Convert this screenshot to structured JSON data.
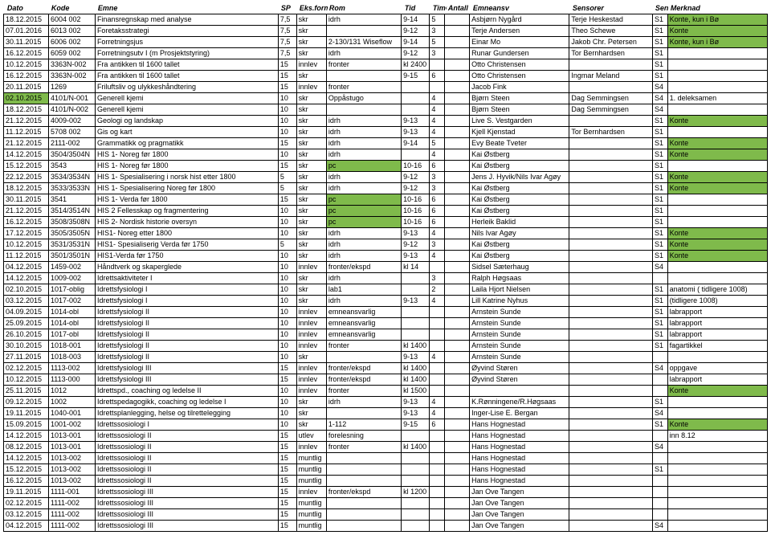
{
  "headers": [
    "Dato",
    "Kode",
    "Emne",
    "SP",
    "Eks.form",
    "Rom",
    "Tid",
    "Timer",
    "Antall",
    "Emneansv",
    "Sensorer",
    "Senstroru.",
    "Merknad"
  ],
  "colors": {
    "green": "#7fba4b"
  },
  "rows": [
    {
      "d": "18.12.2015",
      "k": "6004 002",
      "e": "Finansregnskap med analyse",
      "sp": "7,5",
      "f": "skr",
      "r": "idrh",
      "t": "9-14",
      "ti": "5",
      "a": "",
      "ea": "Asbjørn Nygård",
      "s": "Terje Heskestad",
      "sr": "S1",
      "m": "Konte, kun i Bø",
      "mg": 1
    },
    {
      "d": "07.01.2016",
      "k": "6013 002",
      "e": "Foretaksstrategi",
      "sp": "7,5",
      "f": "skr",
      "r": "",
      "t": "9-12",
      "ti": "3",
      "a": "",
      "ea": "Terje Andersen",
      "s": "Theo Schewe",
      "sr": "S1",
      "m": "Konte",
      "mg": 1
    },
    {
      "d": "30.11.2015",
      "k": "6006 002",
      "e": "Forretningsjus",
      "sp": "7,5",
      "f": "skr",
      "r": "2-130/131 Wiseflow",
      "t": "9-14",
      "ti": "5",
      "a": "",
      "ea": "Einar Mo",
      "s": "Jakob Chr. Petersen",
      "sr": "S1",
      "m": "Konte, kun i Bø",
      "mg": 1
    },
    {
      "d": "16.12.2015",
      "k": "6059 002",
      "e": "Forretningsutv I (m Prosjektstyring)",
      "sp": "7,5",
      "f": "skr",
      "r": "idrh",
      "t": "9-12",
      "ti": "3",
      "a": "",
      "ea": "Runar Gundersen",
      "s": "Tor Bernhardsen",
      "sr": "S1",
      "m": ""
    },
    {
      "d": "10.12.2015",
      "k": "3363N-002",
      "e": "Fra antikken til 1600 tallet",
      "sp": "15",
      "f": "innlev",
      "r": "fronter",
      "t": "kl 2400",
      "ti": "",
      "a": "",
      "ea": "Otto Christensen",
      "s": "",
      "sr": "S1",
      "m": ""
    },
    {
      "d": "16.12.2015",
      "k": "3363N-002",
      "e": "Fra antikken til 1600 tallet",
      "sp": "15",
      "f": "skr",
      "r": "",
      "t": "9-15",
      "ti": "6",
      "a": "",
      "ea": "Otto Christensen",
      "s": "Ingmar Meland",
      "sr": "S1",
      "m": ""
    },
    {
      "d": "20.11.2015",
      "k": "1269",
      "e": "Friluftsliv og ulykkeshåndtering",
      "sp": "15",
      "f": "innlev",
      "r": "fronter",
      "t": "",
      "ti": "",
      "a": "",
      "ea": "Jacob Fink",
      "s": "",
      "sr": "S4",
      "m": ""
    },
    {
      "d": "02.10.2015",
      "dg": 1,
      "k": "4101/N-001",
      "e": "Generell kjemi",
      "sp": "10",
      "f": "skr",
      "r": "Oppåstugo",
      "t": "",
      "ti": "4",
      "a": "",
      "ea": "Bjørn Steen",
      "s": "Dag Semmingsen",
      "sr": "S4",
      "m": "1. deleksamen"
    },
    {
      "d": "18.12.2015",
      "k": "4101/N-002",
      "e": "Generell kjemi",
      "sp": "10",
      "f": "skr",
      "r": "",
      "t": "",
      "ti": "4",
      "a": "",
      "ea": "Bjørn Steen",
      "s": "Dag Semmingsen",
      "sr": "S4",
      "m": ""
    },
    {
      "d": "21.12.2015",
      "k": "4009-002",
      "e": "Geologi og landskap",
      "sp": "10",
      "f": "skr",
      "r": "idrh",
      "t": "9-13",
      "ti": "4",
      "a": "",
      "ea": "Live S. Vestgarden",
      "s": "",
      "sr": "S1",
      "m": "Konte",
      "mg": 1
    },
    {
      "d": "11.12.2015",
      "k": "5708 002",
      "e": "Gis og kart",
      "sp": "10",
      "f": "skr",
      "r": "idrh",
      "t": "9-13",
      "ti": "4",
      "a": "",
      "ea": "Kjell Kjenstad",
      "s": "Tor Bernhardsen",
      "sr": "S1",
      "m": ""
    },
    {
      "d": "21.12.2015",
      "k": "2111-002",
      "e": "Grammatikk og pragmatikk",
      "sp": "15",
      "f": "skr",
      "r": "idrh",
      "t": "9-14",
      "ti": "5",
      "a": "",
      "ea": "Evy Beate Tveter",
      "s": "",
      "sr": "S1",
      "m": "Konte",
      "mg": 1
    },
    {
      "d": "14.12.2015",
      "k": "3504/3504N",
      "e": "HIS 1- Noreg før 1800",
      "sp": "10",
      "f": "skr",
      "r": "idrh",
      "t": "",
      "ti": "4",
      "a": "",
      "ea": "Kai Østberg",
      "s": "",
      "sr": "S1",
      "m": "Konte",
      "mg": 1
    },
    {
      "d": "15.12.2015",
      "k": "3543",
      "e": "HIS 1- Noreg før 1800",
      "sp": "15",
      "f": "skr",
      "r": "pc",
      "rg": 1,
      "t": "10-16",
      "ti": "6",
      "a": "",
      "ea": "Kai Østberg",
      "s": "",
      "sr": "S1",
      "m": ""
    },
    {
      "d": "22.12.2015",
      "k": "3534/3534N",
      "e": "HIS 1- Spesialisering i norsk hist etter 1800",
      "sp": "5",
      "f": "skr",
      "r": "idrh",
      "t": "9-12",
      "ti": "3",
      "a": "",
      "ea": "Jens J. Hyvik/Nils Ivar Agøy",
      "s": "",
      "sr": "S1",
      "m": "Konte",
      "mg": 1
    },
    {
      "d": "18.12.2015",
      "k": "3533/3533N",
      "e": "HIS 1- Spesialisering Noreg før 1800",
      "sp": "5",
      "f": "skr",
      "r": "idrh",
      "t": "9-12",
      "ti": "3",
      "a": "",
      "ea": "Kai Østberg",
      "s": "",
      "sr": "S1",
      "m": "Konte",
      "mg": 1
    },
    {
      "d": "30.11.2015",
      "k": "3541",
      "e": "HIS 1- Verda før 1800",
      "sp": "15",
      "f": "skr",
      "r": "pc",
      "rg": 1,
      "t": "10-16",
      "ti": "6",
      "a": "",
      "ea": "Kai Østberg",
      "s": "",
      "sr": "S1",
      "m": ""
    },
    {
      "d": "21.12.2015",
      "k": "3514/3514N",
      "e": "HIS 2 Fellesskap og fragmentering",
      "sp": "10",
      "f": "skr",
      "r": "pc",
      "rg": 1,
      "t": "10-16",
      "ti": "6",
      "a": "",
      "ea": "Kai Østberg",
      "s": "",
      "sr": "S1",
      "m": ""
    },
    {
      "d": "16.12.2015",
      "k": "3508/3508N",
      "e": "HIS 2- Nordisk historie oversyn",
      "sp": "10",
      "f": "skr",
      "r": "pc",
      "rg": 1,
      "t": "10-16",
      "ti": "6",
      "a": "",
      "ea": "Herleik Baklid",
      "s": "",
      "sr": "S1",
      "m": ""
    },
    {
      "d": "17.12.2015",
      "k": "3505/3505N",
      "e": "HIS1- Noreg etter 1800",
      "sp": "10",
      "f": "skr",
      "r": "idrh",
      "t": "9-13",
      "ti": "4",
      "a": "",
      "ea": "Nils Ivar Agøy",
      "s": "",
      "sr": "S1",
      "m": "Konte",
      "mg": 1
    },
    {
      "d": "10.12.2015",
      "k": "3531/3531N",
      "e": "HIS1- Spesialiserig Verda før 1750",
      "sp": "5",
      "f": "skr",
      "r": "idrh",
      "t": "9-12",
      "ti": "3",
      "a": "",
      "ea": "Kai Østberg",
      "s": "",
      "sr": "S1",
      "m": "Konte",
      "mg": 1
    },
    {
      "d": "11.12.2015",
      "k": "3501/3501N",
      "e": "HIS1-Verda før 1750",
      "sp": "10",
      "f": "skr",
      "r": "idrh",
      "t": "9-13",
      "ti": "4",
      "a": "",
      "ea": "Kai Østberg",
      "s": "",
      "sr": "S1",
      "m": "Konte",
      "mg": 1
    },
    {
      "d": "04.12.2015",
      "k": "1459-002",
      "e": "Håndtverk og skaperglede",
      "sp": "10",
      "f": "innlev",
      "r": "fronter/ekspd",
      "t": "kl 14",
      "ti": "",
      "a": "",
      "ea": "Sidsel Sæterhaug",
      "s": "",
      "sr": "S4",
      "m": ""
    },
    {
      "d": "14.12.2015",
      "k": "1009-002",
      "e": "Idrettsaktiviteter I",
      "sp": "10",
      "f": "skr",
      "r": "idrh",
      "t": "",
      "ti": "3",
      "a": "",
      "ea": "Ralph Høgsaas",
      "s": "",
      "sr": "",
      "m": ""
    },
    {
      "d": "02.10.2015",
      "k": "1017-oblig",
      "e": "Idrettsfysiologi I",
      "sp": "10",
      "f": "skr",
      "r": "lab1",
      "t": "",
      "ti": "2",
      "a": "",
      "ea": "Laila Hjort Nielsen",
      "s": "",
      "sr": "S1",
      "m": "anatomi ( tidligere 1008)"
    },
    {
      "d": "03.12.2015",
      "k": "1017-002",
      "e": "Idrettsfysiologi I",
      "sp": "10",
      "f": "skr",
      "r": "idrh",
      "t": "9-13",
      "ti": "4",
      "a": "",
      "ea": "Lill Katrine Nyhus",
      "s": "",
      "sr": "S1",
      "m": "(tidligere 1008)"
    },
    {
      "d": "04.09.2015",
      "k": "1014-obl",
      "e": "Idrettsfysiologi II",
      "sp": "10",
      "f": "innlev",
      "r": "emneansvarlig",
      "t": "",
      "ti": "",
      "a": "",
      "ea": "Arnstein Sunde",
      "s": "",
      "sr": "S1",
      "m": "labrapport"
    },
    {
      "d": "25.09.2015",
      "k": "1014-obl",
      "e": "Idrettsfysiologi II",
      "sp": "10",
      "f": "innlev",
      "r": "emneansvarlig",
      "t": "",
      "ti": "",
      "a": "",
      "ea": "Arnstein Sunde",
      "s": "",
      "sr": "S1",
      "m": "labrapport"
    },
    {
      "d": "26.10.2015",
      "k": "1017-obl",
      "e": "Idrettsfysiologi II",
      "sp": "10",
      "f": "innlev",
      "r": "emneansvarlig",
      "t": "",
      "ti": "",
      "a": "",
      "ea": "Arnstein Sunde",
      "s": "",
      "sr": "S1",
      "m": "labrapport"
    },
    {
      "d": "30.10.2015",
      "k": "1018-001",
      "e": "Idrettsfysiologi II",
      "sp": "10",
      "f": "innlev",
      "r": "fronter",
      "t": "kl 1400",
      "ti": "",
      "a": "",
      "ea": "Arnstein Sunde",
      "s": "",
      "sr": "S1",
      "m": "fagartikkel"
    },
    {
      "d": "27.11.2015",
      "k": "1018-003",
      "e": "Idrettsfysiologi II",
      "sp": "10",
      "f": "skr",
      "r": "",
      "t": "9-13",
      "ti": "4",
      "a": "",
      "ea": "Arnstein Sunde",
      "s": "",
      "sr": "",
      "m": ""
    },
    {
      "d": "02.12.2015",
      "k": "1113-002",
      "e": "Idrettsfysiologi III",
      "sp": "15",
      "f": "innlev",
      "r": "fronter/ekspd",
      "t": "kl 1400",
      "ti": "",
      "a": "",
      "ea": "Øyvind Støren",
      "s": "",
      "sr": "S4",
      "m": "oppgave"
    },
    {
      "d": "10.12.2015",
      "k": "1113-000",
      "e": "Idrettsfysiologi III",
      "sp": "15",
      "f": "innlev",
      "r": "fronter/ekspd",
      "t": "kl 1400",
      "ti": "",
      "a": "",
      "ea": "Øyvind Støren",
      "s": "",
      "sr": "",
      "m": "labrapport"
    },
    {
      "d": "25.11.2015",
      "k": "1012",
      "e": "Idrettspd., coaching og ledelse II",
      "sp": "10",
      "f": "innlev",
      "r": "fronter",
      "t": "kl 1500",
      "ti": "",
      "a": "",
      "ea": "",
      "s": "",
      "sr": "",
      "m": "Konte",
      "mg": 1
    },
    {
      "d": "09.12.2015",
      "k": "1002",
      "e": "Idrettspedagogikk, coaching og ledelse I",
      "sp": "10",
      "f": "skr",
      "r": "idrh",
      "t": "9-13",
      "ti": "4",
      "a": "",
      "ea": "K.Rønningene/R.Høgsaas",
      "s": "",
      "sr": "S1",
      "m": ""
    },
    {
      "d": "19.11.2015",
      "k": "1040-001",
      "e": "Idrettsplanlegging, helse og tilrettelegging",
      "sp": "10",
      "f": "skr",
      "r": "",
      "t": "9-13",
      "ti": "4",
      "a": "",
      "ea": "Inger-Lise E. Bergan",
      "s": "",
      "sr": "S4",
      "m": ""
    },
    {
      "d": "15.09.2015",
      "k": "1001-002",
      "e": "Idrettssosiologi I",
      "sp": "10",
      "f": "skr",
      "r": "1-112",
      "t": "9-15",
      "ti": "6",
      "a": "",
      "ea": "Hans Hognestad",
      "s": "",
      "sr": "S1",
      "m": "Konte",
      "mg": 1
    },
    {
      "d": "14.12.2015",
      "k": "1013-001",
      "e": "Idrettssosiologi II",
      "sp": "15",
      "f": "utlev",
      "r": "forelesning",
      "t": "",
      "ti": "",
      "a": "",
      "ea": "Hans Hognestad",
      "s": "",
      "sr": "",
      "m": "inn 8.12"
    },
    {
      "d": "08.12.2015",
      "k": "1013-001",
      "e": "Idrettssosiologi II",
      "sp": "15",
      "f": "innlev",
      "r": "fronter",
      "t": "kl 1400",
      "ti": "",
      "a": "",
      "ea": "Hans Hognestad",
      "s": "",
      "sr": "S4",
      "m": ""
    },
    {
      "d": "14.12.2015",
      "k": "1013-002",
      "e": "Idrettssosiologi II",
      "sp": "15",
      "f": "muntlig",
      "r": "",
      "t": "",
      "ti": "",
      "a": "",
      "ea": "Hans Hognestad",
      "s": "",
      "sr": "",
      "m": ""
    },
    {
      "d": "15.12.2015",
      "k": "1013-002",
      "e": "Idrettssosiologi II",
      "sp": "15",
      "f": "muntlig",
      "r": "",
      "t": "",
      "ti": "",
      "a": "",
      "ea": "Hans Hognestad",
      "s": "",
      "sr": "S1",
      "m": ""
    },
    {
      "d": "16.12.2015",
      "k": "1013-002",
      "e": "Idrettssosiologi II",
      "sp": "15",
      "f": "muntlig",
      "r": "",
      "t": "",
      "ti": "",
      "a": "",
      "ea": "Hans Hognestad",
      "s": "",
      "sr": "",
      "m": ""
    },
    {
      "d": "19.11.2015",
      "k": "1111-001",
      "e": "Idrettssosiologi III",
      "sp": "15",
      "f": "innlev",
      "r": "fronter/ekspd",
      "t": "kl 1200",
      "ti": "",
      "a": "",
      "ea": "Jan Ove Tangen",
      "s": "",
      "sr": "",
      "m": ""
    },
    {
      "d": "02.12.2015",
      "k": "1111-002",
      "e": "Idrettssosiologi III",
      "sp": "15",
      "f": "muntlig",
      "r": "",
      "t": "",
      "ti": "",
      "a": "",
      "ea": "Jan Ove Tangen",
      "s": "",
      "sr": "",
      "m": ""
    },
    {
      "d": "03.12.2015",
      "k": "1111-002",
      "e": "Idrettssosiologi III",
      "sp": "15",
      "f": "muntlig",
      "r": "",
      "t": "",
      "ti": "",
      "a": "",
      "ea": "Jan Ove Tangen",
      "s": "",
      "sr": "",
      "m": ""
    },
    {
      "d": "04.12.2015",
      "k": "1111-002",
      "e": "Idrettssosiologi III",
      "sp": "15",
      "f": "muntlig",
      "r": "",
      "t": "",
      "ti": "",
      "a": "",
      "ea": "Jan Ove Tangen",
      "s": "",
      "sr": "S4",
      "m": ""
    }
  ]
}
